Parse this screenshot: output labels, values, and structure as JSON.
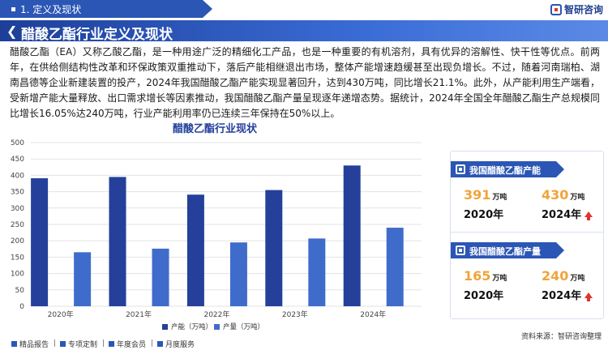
{
  "breadcrumb": {
    "label": "1. 定义及现状"
  },
  "brand": {
    "name": "智研咨询"
  },
  "title": "醋酸乙酯行业定义及现状",
  "paragraph": "醋酸乙酯（EA）又称乙酸乙酯，是一种用途广泛的精细化工产品，也是一种重要的有机溶剂，具有优异的溶解性、快干性等优点。前两年，在供给侧结构性改革和环保政策双重推动下，落后产能相继退出市场，整体产能增速趋缓甚至出现负增长。不过，随着河南瑞柏、湖南昌德等企业新建装置的投产，2024年我国醋酸乙酯产能实现显著回升，达到430万吨，同比增长21.1%。此外，从产能利用生产端看，受新增产能大量释放、出口需求增长等因素推动，我国醋酸乙酯产量呈现逐年递增态势。据统计，2024年全国全年醋酸乙酯生产总规模同比增长16.05%达240万吨，行业产能利用率仍已连续三年保持在50%以上。",
  "chart_data": {
    "type": "bar",
    "title": "醋酸乙酯行业现状",
    "categories": [
      "2020年",
      "2021年",
      "2022年",
      "2023年",
      "2024年"
    ],
    "series": [
      {
        "name": "产能（万吨）",
        "values": [
          391,
          395,
          341,
          355,
          430
        ],
        "color": "#24409a"
      },
      {
        "name": "产量（万吨）",
        "values": [
          165,
          176,
          195,
          207,
          240
        ],
        "color": "#3f6ccb"
      }
    ],
    "ylim": [
      0,
      500
    ],
    "yticks": [
      0,
      50,
      100,
      150,
      200,
      250,
      300,
      350,
      400,
      450,
      500
    ],
    "grid": true,
    "legend": "bottom"
  },
  "cards": [
    {
      "title": "我国醋酸乙酯产能",
      "left": {
        "value": "391",
        "unit": "万吨",
        "year": "2020年"
      },
      "right": {
        "value": "430",
        "unit": "万吨",
        "year": "2024年"
      }
    },
    {
      "title": "我国醋酸乙酯产量",
      "left": {
        "value": "165",
        "unit": "万吨",
        "year": "2020年"
      },
      "right": {
        "value": "240",
        "unit": "万吨",
        "year": "2024年"
      }
    }
  ],
  "footer": {
    "items": [
      "精品报告",
      "专项定制",
      "年度会员",
      "月度服务"
    ],
    "source": "资料来源：智研咨询整理"
  },
  "colors": {
    "primary": "#2b56b5",
    "accent": "#f2a33a",
    "up": "#e0342c"
  }
}
